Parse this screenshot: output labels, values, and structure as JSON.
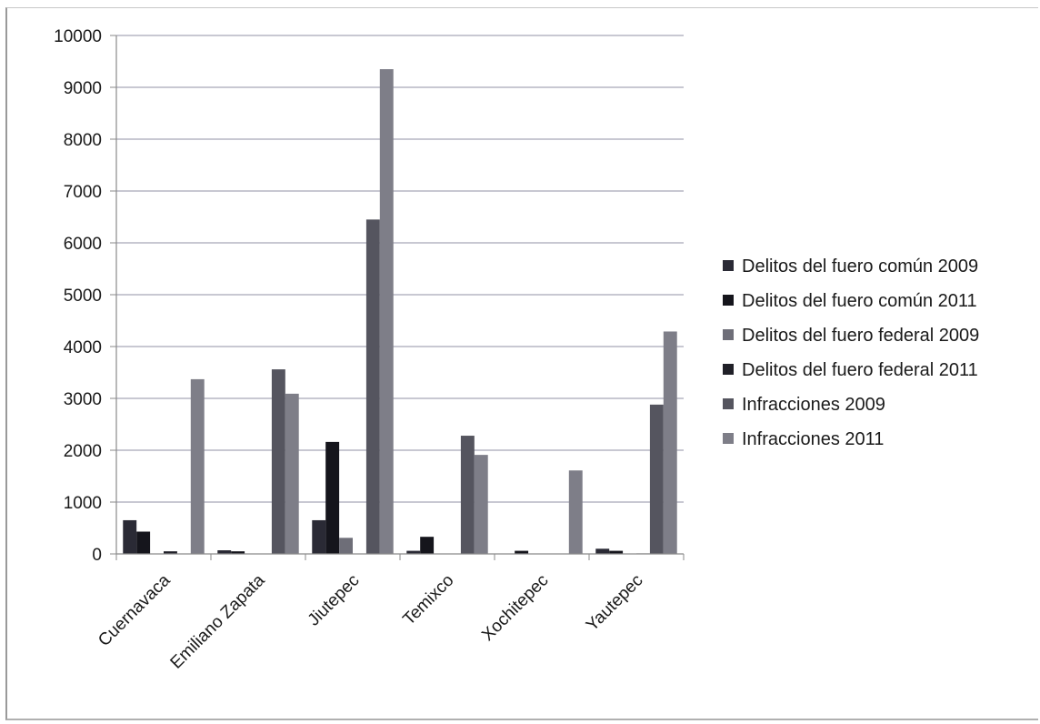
{
  "chart_data": {
    "type": "bar",
    "title": "",
    "xlabel": "",
    "ylabel": "",
    "ylim": [
      0,
      10000
    ],
    "yticks": [
      0,
      1000,
      2000,
      3000,
      4000,
      5000,
      6000,
      7000,
      8000,
      9000,
      10000
    ],
    "grid": true,
    "legend_position": "right",
    "categories": [
      "Cuernavaca",
      "Emiliano Zapata",
      "Jiutepec",
      "Temixco",
      "Xochitepec",
      "Yautepec"
    ],
    "series": [
      {
        "name": "Delitos del fuero común 2009",
        "color": "#2a2a35",
        "values": [
          650,
          70,
          650,
          60,
          0,
          100
        ]
      },
      {
        "name": "Delitos del fuero común 2011",
        "color": "#15151c",
        "values": [
          430,
          50,
          2160,
          330,
          60,
          60
        ]
      },
      {
        "name": "Delitos del fuero federal 2009",
        "color": "#6e6e78",
        "values": [
          0,
          0,
          310,
          0,
          0,
          0
        ]
      },
      {
        "name": "Delitos del fuero federal 2011",
        "color": "#202028",
        "values": [
          50,
          0,
          0,
          0,
          0,
          10
        ]
      },
      {
        "name": "Infracciones 2009",
        "color": "#55555f",
        "values": [
          0,
          3560,
          6450,
          2280,
          0,
          2880
        ]
      },
      {
        "name": "Infracciones 2011",
        "color": "#7e7e88",
        "values": [
          3370,
          3090,
          9350,
          1910,
          1610,
          4290
        ]
      }
    ]
  }
}
